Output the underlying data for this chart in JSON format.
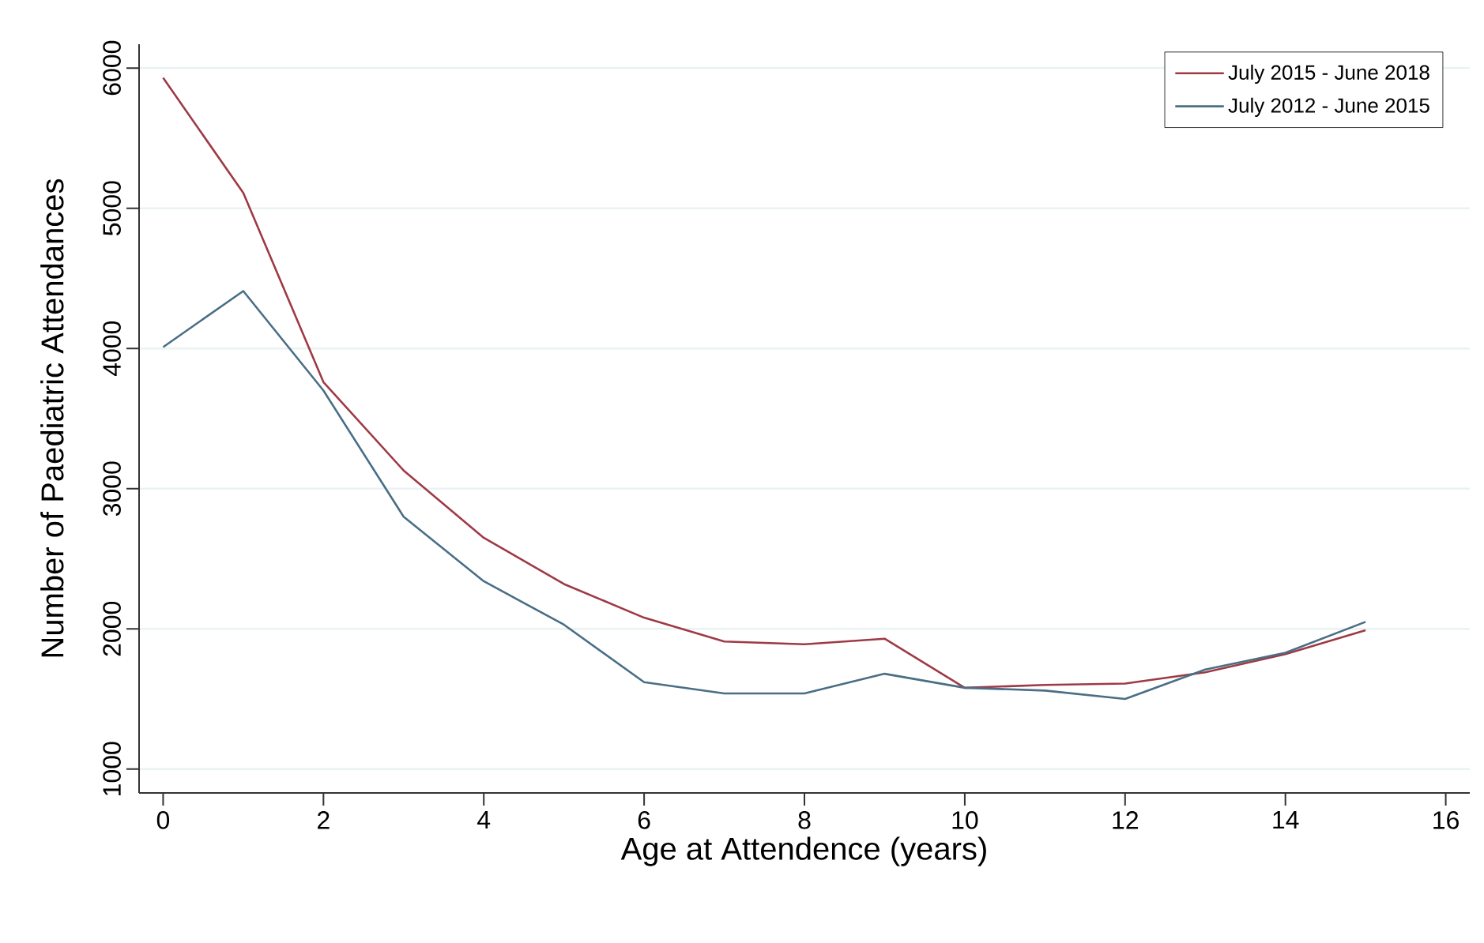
{
  "chart_data": {
    "type": "line",
    "xlabel": "Age at Attendence (years)",
    "ylabel": "Number of Paediatric Attendances",
    "x": [
      0,
      1,
      2,
      3,
      4,
      5,
      6,
      7,
      8,
      9,
      10,
      11,
      12,
      13,
      14,
      15
    ],
    "series": [
      {
        "name": "July 2015 - June 2018",
        "color": "#9e3a45",
        "values": [
          5930,
          5110,
          3760,
          3130,
          2650,
          2320,
          2080,
          1910,
          1890,
          1930,
          1580,
          1600,
          1610,
          1690,
          1820,
          1990
        ]
      },
      {
        "name": "July 2012 - June 2015",
        "color": "#4a6e85",
        "values": [
          4010,
          4410,
          3700,
          2800,
          2340,
          2030,
          1620,
          1540,
          1540,
          1680,
          1580,
          1560,
          1500,
          1710,
          1830,
          2050
        ]
      }
    ],
    "xlim": [
      -0.3,
      16.3
    ],
    "ylim": [
      830,
      6170
    ],
    "xticks": [
      0,
      2,
      4,
      6,
      8,
      10,
      12,
      14,
      16
    ],
    "yticks": [
      1000,
      2000,
      3000,
      4000,
      5000,
      6000
    ],
    "grid": "y",
    "legend": "top right",
    "marker": "none",
    "line_style": "solid"
  }
}
